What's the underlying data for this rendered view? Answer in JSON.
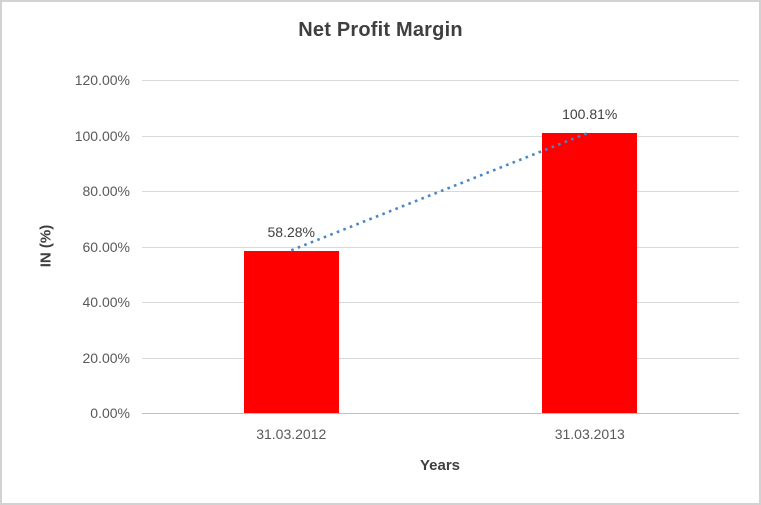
{
  "chart_data": {
    "type": "bar",
    "title": "Net Profit Margin",
    "xlabel": "Years",
    "ylabel": "IN (%)",
    "categories": [
      "31.03.2012",
      "31.03.2013"
    ],
    "values": [
      58.28,
      100.81
    ],
    "data_labels": [
      "58.28%",
      "100.81%"
    ],
    "ylim": [
      0,
      120
    ],
    "ytick_step": 20,
    "ytick_labels": [
      "0.00%",
      "20.00%",
      "40.00%",
      "60.00%",
      "80.00%",
      "100.00%",
      "120.00%"
    ],
    "grid": "horizontal",
    "legend": "none",
    "trendline": {
      "style": "dotted",
      "connects": [
        "bar-top-31.03.2012",
        "bar-top-31.03.2013"
      ]
    },
    "colors": {
      "bar": "#FF0000",
      "gridline": "#d9d9d9",
      "axis_line": "#bfbfbf",
      "trendline": "#4a86c6",
      "border": "#d2d2d2",
      "title_text": "#3f3f3f",
      "tick_text": "#595959"
    }
  }
}
